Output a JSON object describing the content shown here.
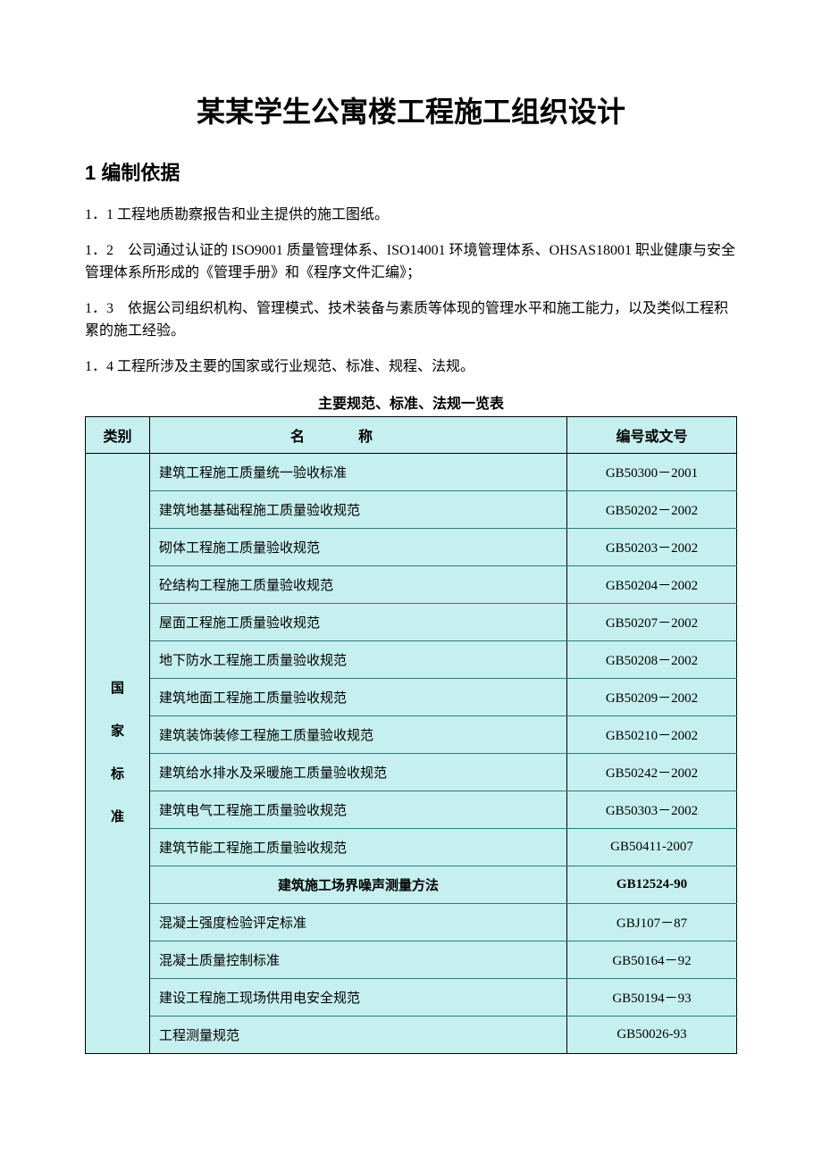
{
  "title": "某某学生公寓楼工程施工组织设计",
  "section": "1 编制依据",
  "paragraphs": {
    "p1": "1．1 工程地质勘察报告和业主提供的施工图纸。",
    "p2": "1．2　公司通过认证的 ISO9001 质量管理体系、ISO14001 环境管理体系、OHSAS18001 职业健康与安全管理体系所形成的《管理手册》和《程序文件汇编》；",
    "p3": "1．3　依据公司组织机构、管理模式、技术装备与素质等体现的管理水平和施工能力，以及类似工程积累的施工经验。",
    "p4": "1．4 工程所涉及主要的国家或行业规范、标准、规程、法规。"
  },
  "table_caption": "主要规范、标准、法规一览表",
  "table": {
    "background_color": "#c5f0ef",
    "border_color": "#000000",
    "row_divider_color": "#2a7a7a",
    "headers": {
      "cat": "类别",
      "name": "名称",
      "code": "编号或文号"
    },
    "category_chars": [
      "国",
      "家",
      "标",
      "准"
    ],
    "rows": [
      {
        "name": "建筑工程施工质量统一验收标准",
        "code": "GB50300－2001"
      },
      {
        "name": "建筑地基基础程施工质量验收规范",
        "code": "GB50202－2002"
      },
      {
        "name": "砌体工程施工质量验收规范",
        "code": "GB50203－2002"
      },
      {
        "name": "砼结构工程施工质量验收规范",
        "code": "GB50204－2002"
      },
      {
        "name": "屋面工程施工质量验收规范",
        "code": "GB50207－2002"
      },
      {
        "name": "地下防水工程施工质量验收规范",
        "code": "GB50208－2002"
      },
      {
        "name": "建筑地面工程施工质量验收规范",
        "code": "GB50209－2002"
      },
      {
        "name": "建筑装饰装修工程施工质量验收规范",
        "code": "GB50210－2002"
      },
      {
        "name": "建筑给水排水及采暖施工质量验收规范",
        "code": "GB50242－2002"
      },
      {
        "name": "建筑电气工程施工质量验收规范",
        "code": "GB50303－2002"
      },
      {
        "name": "建筑节能工程施工质量验收规范",
        "code": "GB50411-2007"
      },
      {
        "name": "建筑施工场界噪声测量方法",
        "code": "GB12524-90",
        "center": true,
        "bold": true
      },
      {
        "name": "混凝土强度检验评定标准",
        "code": "GBJ107－87"
      },
      {
        "name": "混凝土质量控制标准",
        "code": "GB50164－92"
      },
      {
        "name": "建设工程施工现场供用电安全规范",
        "code": "GB50194－93"
      },
      {
        "name": "工程测量规范",
        "code": "GB50026-93"
      }
    ]
  }
}
